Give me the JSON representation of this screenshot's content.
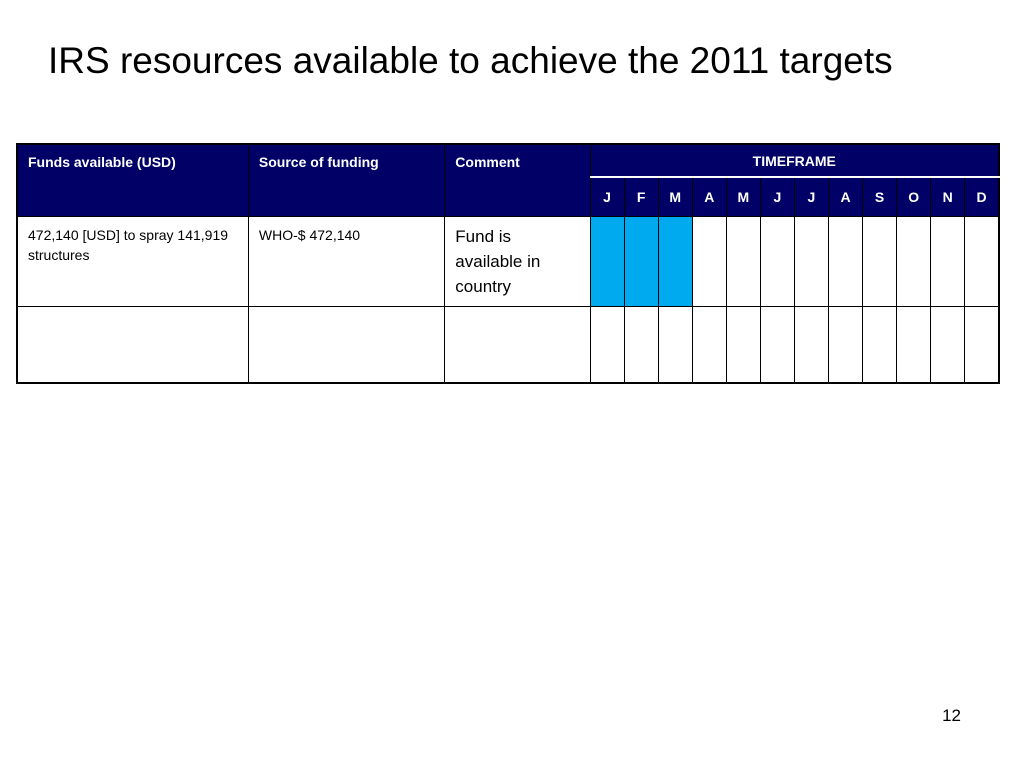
{
  "slide": {
    "title": "IRS resources available to achieve the 2011 targets",
    "page_number": "12"
  },
  "table": {
    "headers": {
      "funds": "Funds available (USD)",
      "source": "Source of funding",
      "comment": "Comment",
      "timeframe": "TIMEFRAME"
    },
    "months": [
      "J",
      "F",
      "M",
      "A",
      "M",
      "J",
      "J",
      "A",
      "S",
      "O",
      "N",
      "D"
    ],
    "rows": [
      {
        "funds": "472,140 [USD] to spray 141,919 structures",
        "source": "WHO-$ 472,140",
        "comment": "Fund is available in country",
        "active_months": [
          0,
          1,
          2
        ]
      },
      {
        "funds": "",
        "source": "",
        "comment": "",
        "active_months": []
      }
    ]
  },
  "colors": {
    "header_bg": "#000066",
    "active_month": "#00aaee"
  }
}
